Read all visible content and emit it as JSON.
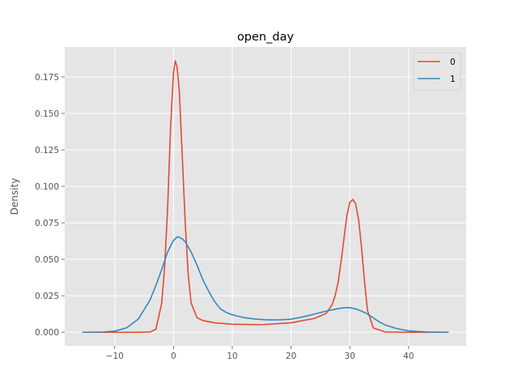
{
  "chart_data": {
    "type": "line",
    "title": "open_day",
    "xlabel": "",
    "ylabel": "Density",
    "xlim": [
      -18.5,
      49.8
    ],
    "ylim": [
      -0.0093,
      0.1955
    ],
    "xticks": [
      -10,
      0,
      10,
      20,
      30,
      40
    ],
    "yticks": [
      0.0,
      0.025,
      0.05,
      0.075,
      0.1,
      0.125,
      0.15,
      0.175
    ],
    "ytick_labels": [
      "0.000",
      "0.025",
      "0.050",
      "0.075",
      "0.100",
      "0.125",
      "0.150",
      "0.175"
    ],
    "grid": true,
    "legend_position": "top-right",
    "series": [
      {
        "name": "0",
        "color": "#E24A33",
        "x": [
          -15.5,
          -10,
          -6,
          -4,
          -3,
          -2,
          -1.5,
          -1,
          -0.5,
          0,
          0.3,
          0.6,
          1,
          1.5,
          2,
          2.5,
          3,
          4,
          5,
          7,
          10,
          15,
          20,
          24,
          26,
          27,
          27.5,
          28,
          28.5,
          29,
          29.5,
          30,
          30.5,
          31,
          31.5,
          32,
          32.5,
          33,
          34,
          36,
          40,
          46.8
        ],
        "y": [
          0.0,
          0.0,
          0.0,
          0.0002,
          0.002,
          0.02,
          0.045,
          0.085,
          0.14,
          0.178,
          0.186,
          0.182,
          0.165,
          0.12,
          0.075,
          0.04,
          0.02,
          0.01,
          0.008,
          0.0065,
          0.0055,
          0.0052,
          0.0065,
          0.0095,
          0.013,
          0.019,
          0.025,
          0.034,
          0.048,
          0.064,
          0.08,
          0.089,
          0.091,
          0.088,
          0.077,
          0.058,
          0.035,
          0.015,
          0.003,
          0.0002,
          0.0,
          0.0
        ]
      },
      {
        "name": "1",
        "color": "#348ABD",
        "x": [
          -15.5,
          -12,
          -10,
          -8,
          -6,
          -4,
          -3,
          -2,
          -1,
          0,
          0.7,
          1.5,
          2,
          3,
          4,
          5,
          6,
          7,
          8,
          9,
          10,
          12,
          14,
          16,
          18,
          20,
          22,
          24,
          26,
          28,
          29,
          30,
          31,
          32,
          33,
          34,
          35,
          36,
          38,
          40,
          43,
          46.8
        ],
        "y": [
          0.0,
          0.0002,
          0.0008,
          0.003,
          0.009,
          0.022,
          0.032,
          0.043,
          0.055,
          0.063,
          0.0655,
          0.064,
          0.062,
          0.055,
          0.046,
          0.036,
          0.028,
          0.021,
          0.016,
          0.0135,
          0.012,
          0.01,
          0.009,
          0.0085,
          0.0085,
          0.009,
          0.0105,
          0.0125,
          0.0145,
          0.0162,
          0.0168,
          0.0168,
          0.016,
          0.0145,
          0.0125,
          0.0098,
          0.0072,
          0.005,
          0.0025,
          0.001,
          0.0002,
          0.0
        ]
      }
    ]
  }
}
